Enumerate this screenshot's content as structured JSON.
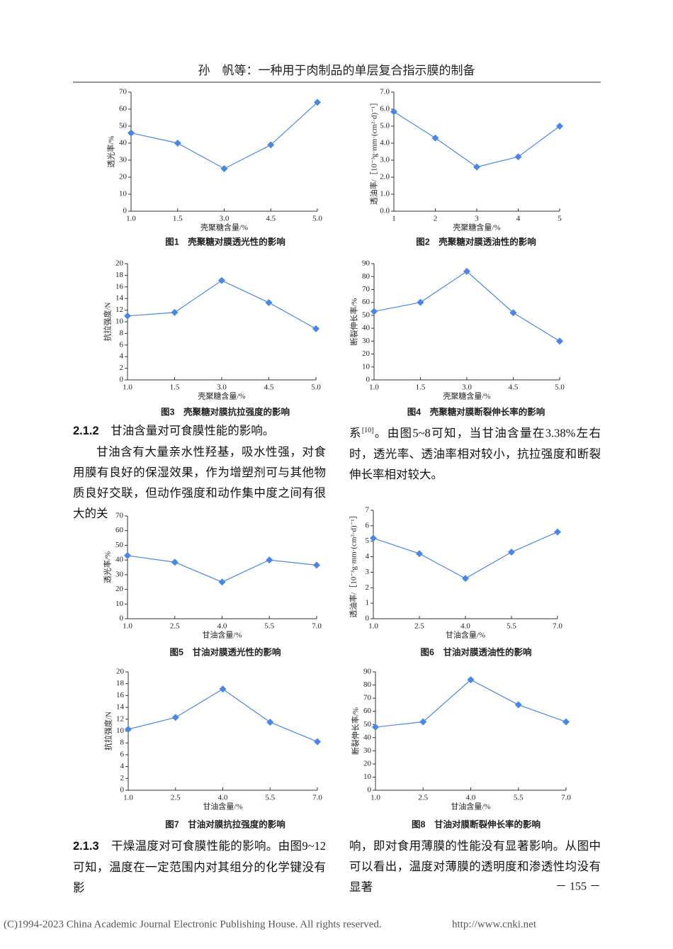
{
  "header": {
    "title": "孙　帆等：一种用于肉制品的单层复合指示膜的制备"
  },
  "chart_data": [
    {
      "type": "line",
      "caption": "图1　壳聚糖对膜透光性的影响",
      "xlabel": "壳聚糖含量/%",
      "ylabel": "透光率/%",
      "categories": [
        "1.0",
        "1.5",
        "3.0",
        "4.5",
        "5.0"
      ],
      "values": [
        46,
        40,
        25,
        39,
        64
      ],
      "color": "#4a86e8",
      "ylim": [
        0,
        70
      ],
      "yticks": [
        0,
        10,
        20,
        30,
        40,
        50,
        60,
        70
      ]
    },
    {
      "type": "line",
      "caption": "图2　壳聚糖对膜透油性的影响",
      "xlabel": "壳聚糖含量/%",
      "ylabel": "透油率/［10⁻³g·mm·(cm²·d)⁻¹］",
      "categories": [
        "1",
        "2",
        "3",
        "4",
        "5"
      ],
      "values": [
        5.85,
        4.3,
        2.6,
        3.2,
        5.0
      ],
      "color": "#4a86e8",
      "ylim": [
        0,
        7
      ],
      "yticks": [
        {
          "value": 0,
          "label": "0.0"
        },
        {
          "value": 1,
          "label": "1.0"
        },
        {
          "value": 2,
          "label": "2.0"
        },
        {
          "value": 3,
          "label": "3.0"
        },
        {
          "value": 4,
          "label": "4.0"
        },
        {
          "value": 5,
          "label": "5.0"
        },
        {
          "value": 6,
          "label": "6.0"
        },
        {
          "value": 7,
          "label": "7.0"
        }
      ]
    },
    {
      "type": "line",
      "caption": "图3　壳聚糖对膜抗拉强度的影响",
      "xlabel": "壳聚糖含量/%",
      "ylabel": "抗拉强度/N",
      "categories": [
        "1.0",
        "1.5",
        "3.0",
        "4.5",
        "5.0"
      ],
      "values": [
        11,
        11.6,
        17.1,
        13.3,
        8.8
      ],
      "color": "#4a86e8",
      "ylim": [
        0,
        20
      ],
      "yticks": [
        0,
        2,
        4,
        6,
        8,
        10,
        12,
        14,
        16,
        18,
        20
      ]
    },
    {
      "type": "line",
      "caption": "图4　壳聚糖对膜断裂伸长率的影响",
      "xlabel": "壳聚糖含量/%",
      "ylabel": "断裂伸长率/%",
      "categories": [
        "1.0",
        "1.5",
        "3.0",
        "4.5",
        "5.0"
      ],
      "values": [
        53,
        60,
        84,
        52,
        30
      ],
      "color": "#4a86e8",
      "ylim": [
        0,
        90
      ],
      "yticks": [
        0,
        10,
        20,
        30,
        40,
        50,
        60,
        70,
        80,
        90
      ]
    },
    {
      "type": "line",
      "caption": "图5　甘油对膜透光性的影响",
      "xlabel": "甘油含量/%",
      "ylabel": "透光率/%",
      "categories": [
        "1.0",
        "2.5",
        "4.0",
        "5.5",
        "7.0"
      ],
      "values": [
        43,
        38.5,
        25,
        40,
        36.5
      ],
      "color": "#4a86e8",
      "ylim": [
        0,
        70
      ],
      "yticks": [
        0,
        10,
        20,
        30,
        40,
        50,
        60,
        70
      ]
    },
    {
      "type": "line",
      "caption": "图6　甘油对膜透油性的影响",
      "xlabel": "甘油含量/%",
      "ylabel": "透油率/［10⁻³g·mm·(cm²·d)⁻¹］",
      "categories": [
        "1.0",
        "2.5",
        "4.0",
        "5.5",
        "7.0"
      ],
      "values": [
        5.2,
        4.2,
        2.6,
        4.3,
        5.6
      ],
      "color": "#4a86e8",
      "ylim": [
        0,
        7
      ],
      "yticks": [
        0,
        1,
        2,
        3,
        4,
        5,
        6,
        7
      ]
    },
    {
      "type": "line",
      "caption": "图7　甘油对膜抗拉强度的影响",
      "xlabel": "甘油含量/%",
      "ylabel": "抗拉强度/N",
      "categories": [
        "1.0",
        "2.5",
        "4.0",
        "5.5",
        "7.0"
      ],
      "values": [
        10.3,
        12.3,
        17.1,
        11.5,
        8.2
      ],
      "color": "#4a86e8",
      "ylim": [
        0,
        20
      ],
      "yticks": [
        0,
        2,
        4,
        6,
        8,
        10,
        12,
        14,
        16,
        18,
        20
      ]
    },
    {
      "type": "line",
      "caption": "图8　甘油对膜断裂伸长率的影响",
      "xlabel": "甘油含量/%",
      "ylabel": "断裂伸长率/%",
      "categories": [
        "1.0",
        "2.5",
        "4.0",
        "5.5",
        "7.0"
      ],
      "values": [
        48,
        52,
        84,
        65,
        52
      ],
      "color": "#4a86e8",
      "ylim": [
        0,
        90
      ],
      "yticks": [
        0,
        10,
        20,
        30,
        40,
        50,
        60,
        70,
        80,
        90
      ]
    }
  ],
  "text": {
    "s212_num": "2.1.2",
    "s212_title": "甘油含量对可食膜性能的影响。",
    "p1": "甘油含有大量亲水性羟基，吸水性强，对食用膜有良好的保湿效果，作为增塑剂可与其他物质良好交联，但动作强度和动作集中度之间有很大的关",
    "p2a": "系",
    "p2ref": "[10]",
    "p2b": "。由图5~8可知，当甘油含量在3.38%左右时，透光率、透油率相对较小，抗拉强度和断裂伸长率相对较大。",
    "s213_num": "2.1.3",
    "s213_left": "干燥温度对可食膜性能的影响。由图9~12可知，温度在一定范围内对其组分的化学键没有影",
    "s213_right": "响，即对食用薄膜的性能没有显著影响。从图中可以看出，温度对薄膜的透明度和渗透性均没有显著"
  },
  "footer": {
    "page": "－ 155 －",
    "copyright": "(C)1994-2023 China Academic Journal Electronic Publishing House. All rights reserved.",
    "url": "http://www.cnki.net"
  }
}
